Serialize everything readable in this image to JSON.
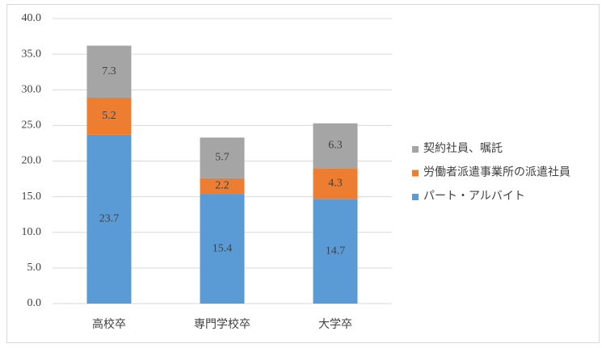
{
  "chart_data": {
    "type": "stacked-bar",
    "categories": [
      "高校卒",
      "専門学校卒",
      "大学卒"
    ],
    "series": [
      {
        "name": "パート・アルバイト",
        "color": "#5b9bd5",
        "values": [
          23.7,
          15.4,
          14.7
        ]
      },
      {
        "name": "労働者派遣事業所の派遣社員",
        "color": "#ed7d31",
        "values": [
          5.2,
          2.2,
          4.3
        ]
      },
      {
        "name": "契約社員、嘱託",
        "color": "#a5a5a5",
        "values": [
          7.3,
          5.7,
          6.3
        ]
      }
    ],
    "ylim": [
      0,
      40
    ],
    "yticks": [
      {
        "value": 0,
        "label": "0.0"
      },
      {
        "value": 5,
        "label": "5.0"
      },
      {
        "value": 10,
        "label": "10.0"
      },
      {
        "value": 15,
        "label": "15.0"
      },
      {
        "value": 20,
        "label": "20.0"
      },
      {
        "value": 25,
        "label": "25.0"
      },
      {
        "value": 30,
        "label": "30.0"
      },
      {
        "value": 35,
        "label": "35.0"
      },
      {
        "value": 40,
        "label": "40.0"
      }
    ],
    "grid": true,
    "legend": "right"
  }
}
